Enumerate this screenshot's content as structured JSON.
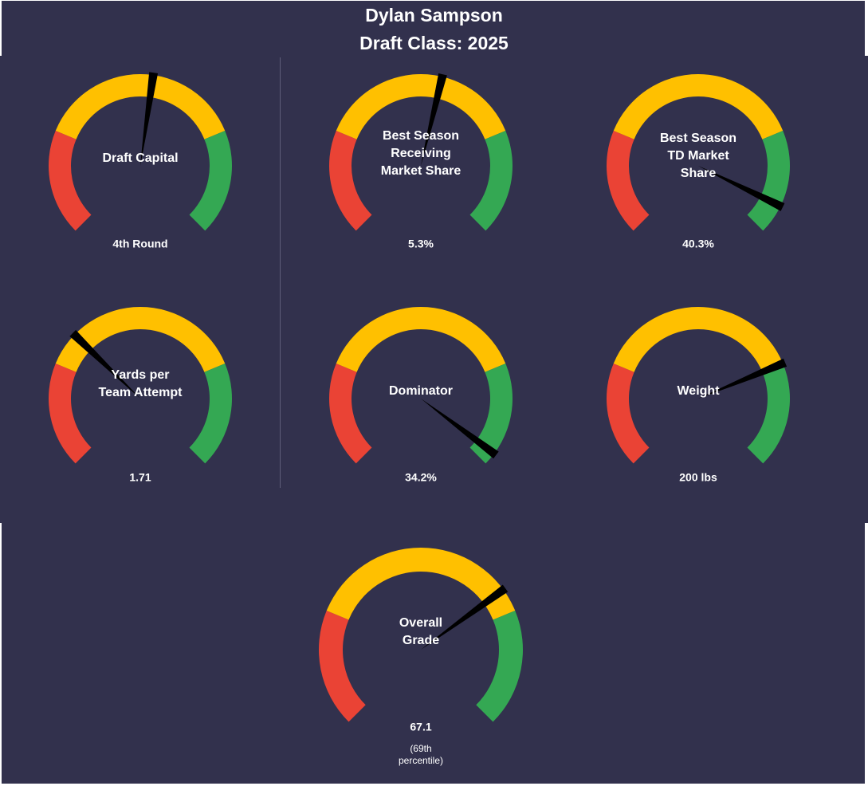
{
  "header": {
    "player_name": "Dylan Sampson",
    "draft_class": "Draft Class: 2025"
  },
  "colors": {
    "background": "#32314d",
    "red": "#ea4335",
    "yellow": "#ffc000",
    "green": "#34a853",
    "needle": "#000000",
    "text": "#ffffff"
  },
  "chart_data": [
    {
      "type": "gauge",
      "label_lines": [
        "Draft Capital"
      ],
      "value_text": "4th Round",
      "position": 0.53
    },
    {
      "type": "gauge",
      "label_lines": [
        "Best Season",
        "Receiving",
        "Market Share"
      ],
      "value_text": "5.3%",
      "position": 0.55
    },
    {
      "type": "gauge",
      "label_lines": [
        "Best Season",
        "TD Market",
        "Share"
      ],
      "value_text": "40.3%",
      "position": 0.93
    },
    {
      "type": "gauge",
      "label_lines": [
        "Yards per",
        "Team Attempt"
      ],
      "value_text": "1.71",
      "position": 0.33
    },
    {
      "type": "gauge",
      "label_lines": [
        "Dominator"
      ],
      "value_text": "34.2%",
      "position": 0.97
    },
    {
      "type": "gauge",
      "label_lines": [
        "Weight"
      ],
      "value_text": "200 lbs",
      "position": 0.75
    },
    {
      "type": "gauge",
      "label_lines": [
        "Overall",
        "Grade"
      ],
      "value_text": "67.1",
      "sub_lines": [
        "(69th",
        "percentile)"
      ],
      "position": 0.7
    }
  ]
}
